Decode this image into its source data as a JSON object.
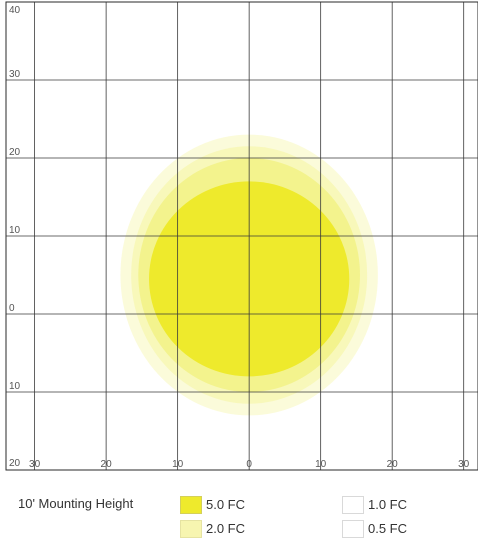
{
  "chart_data": {
    "type": "heatmap",
    "title": "",
    "xlabel": "",
    "ylabel": "",
    "xlim": [
      -34,
      32
    ],
    "ylim": [
      -20,
      40
    ],
    "grid": true,
    "x_ticks": [
      {
        "value": -30,
        "label": "30"
      },
      {
        "value": -20,
        "label": "20"
      },
      {
        "value": -10,
        "label": "10"
      },
      {
        "value": 0,
        "label": "0"
      },
      {
        "value": 10,
        "label": "10"
      },
      {
        "value": 20,
        "label": "20"
      },
      {
        "value": 30,
        "label": "30"
      }
    ],
    "y_ticks": [
      {
        "value": 40,
        "label": "40"
      },
      {
        "value": 30,
        "label": "30"
      },
      {
        "value": 20,
        "label": "20"
      },
      {
        "value": 10,
        "label": "10"
      },
      {
        "value": 0,
        "label": "0"
      },
      {
        "value": -10,
        "label": "10"
      },
      {
        "value": -20,
        "label": "20"
      }
    ],
    "contours": [
      {
        "level": "0.5 FC",
        "color": "#fbfbd8",
        "cx": 0,
        "cy": 5,
        "rx": 18,
        "ry": 18
      },
      {
        "level": "1.0 FC",
        "color": "#f8f8b8",
        "cx": 0,
        "cy": 5,
        "rx": 16.5,
        "ry": 16.5
      },
      {
        "level": "2.0 FC",
        "color": "#f2f28a",
        "cx": 0,
        "cy": 5,
        "rx": 15.5,
        "ry": 15
      },
      {
        "level": "5.0 FC",
        "color": "#eeea2c",
        "cx": 0,
        "cy": 4.5,
        "rx": 14,
        "ry": 12.5
      }
    ],
    "legend_placement": "bottom"
  },
  "legend": {
    "mounting_label": "10' Mounting Height",
    "items": [
      {
        "label": "5.0 FC",
        "color": "#eeea2c",
        "border": "#d4d05a"
      },
      {
        "label": "2.0 FC",
        "color": "#f7f5b0",
        "border": "#e6e3a2"
      },
      {
        "label": "1.0 FC",
        "color": "#ffffff",
        "border": "#d9d9d9"
      },
      {
        "label": "0.5 FC",
        "color": "#ffffff",
        "border": "#d9d9d9"
      }
    ]
  }
}
